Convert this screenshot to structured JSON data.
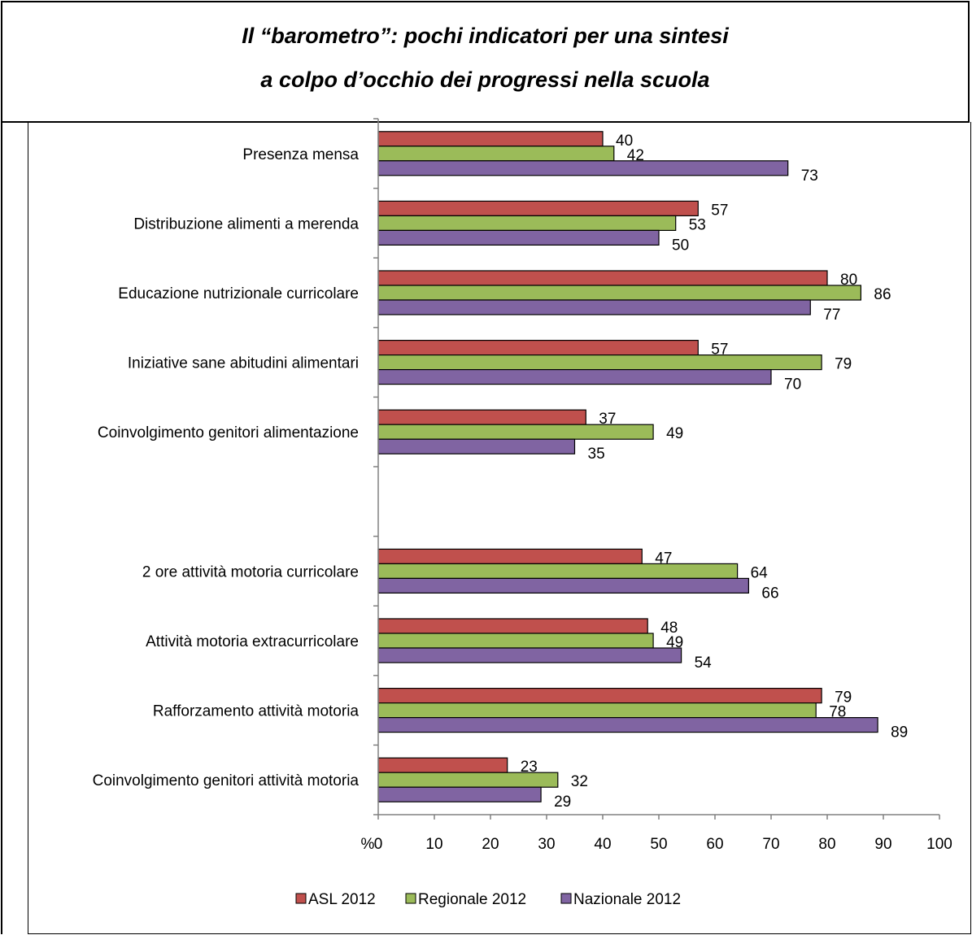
{
  "title": {
    "line1": "Il “barometro”: pochi indicatori per una sintesi",
    "line2": "a colpo d’occhio dei progressi nella scuola"
  },
  "chart_data": {
    "type": "bar",
    "orientation": "horizontal",
    "categories": [
      "Presenza mensa",
      "Distribuzione alimenti a merenda",
      "Educazione nutrizionale curricolare",
      "Iniziative sane abitudini alimentari",
      "Coinvolgimento genitori alimentazione",
      "",
      "2 ore attività motoria curricolare",
      "Attività motoria extracurricolare",
      "Rafforzamento attività motoria",
      "Coinvolgimento genitori attività motoria"
    ],
    "series": [
      {
        "name": "ASL 2012",
        "color": "#C0504D",
        "values": [
          40,
          57,
          80,
          57,
          37,
          null,
          47,
          48,
          79,
          23
        ]
      },
      {
        "name": "Regionale 2012",
        "color": "#9BBB59",
        "values": [
          42,
          53,
          86,
          79,
          49,
          null,
          64,
          49,
          78,
          32
        ]
      },
      {
        "name": "Nazionale 2012",
        "color": "#8064A2",
        "values": [
          73,
          50,
          77,
          70,
          35,
          null,
          66,
          54,
          89,
          29
        ]
      }
    ],
    "xlabel": "%",
    "xlim": [
      0,
      100
    ],
    "xticks": [
      0,
      10,
      20,
      30,
      40,
      50,
      60,
      70,
      80,
      90,
      100
    ],
    "legend_position": "bottom"
  }
}
